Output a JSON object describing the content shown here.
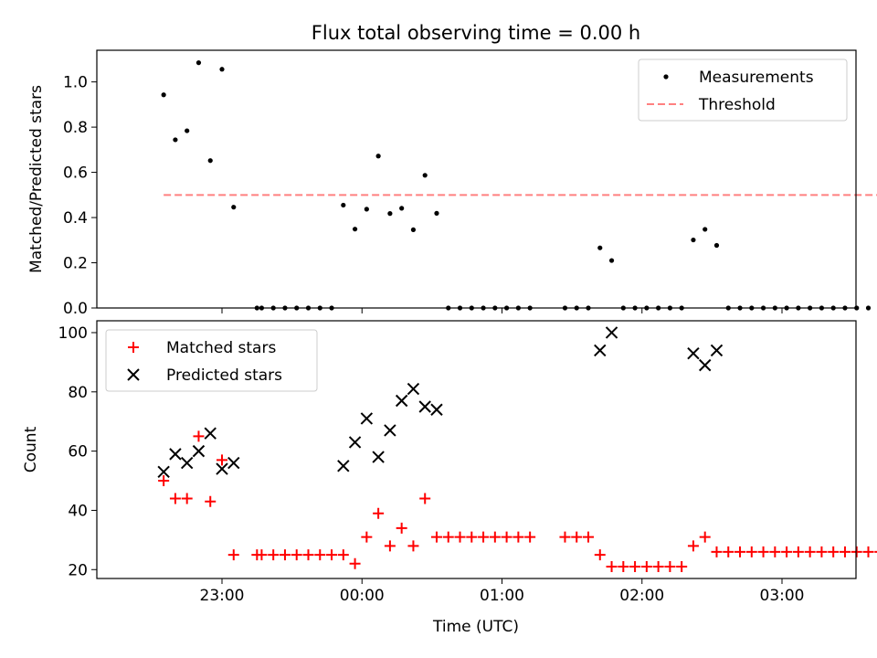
{
  "chart_data": {
    "title": "Flux total observing time = 0.00 h",
    "xlabel": "Time (UTC)",
    "x_ticks": [
      "23:00",
      "00:00",
      "01:00",
      "02:00",
      "03:00"
    ],
    "panels": [
      {
        "type": "scatter",
        "ylabel": "Matched/Predicted stars",
        "ylim": [
          0,
          1.14
        ],
        "y_ticks": [
          0.0,
          0.2,
          0.4,
          0.6,
          0.8,
          1.0
        ],
        "legend_placement": "upper-right",
        "series": [
          {
            "name": "Measurements",
            "marker": "dot",
            "color": "#000000",
            "points": [
              [
                "22:35",
                0.943
              ],
              [
                "22:40",
                0.744
              ],
              [
                "22:45",
                0.784
              ],
              [
                "22:50",
                1.085
              ],
              [
                "22:55",
                0.652
              ],
              [
                "23:00",
                1.056
              ],
              [
                "23:05",
                0.446
              ],
              [
                "23:15",
                0.0
              ],
              [
                "23:17",
                0.0
              ],
              [
                "23:22",
                0.0
              ],
              [
                "23:27",
                0.0
              ],
              [
                "23:32",
                0.0
              ],
              [
                "23:37",
                0.0
              ],
              [
                "23:42",
                0.0
              ],
              [
                "23:47",
                0.0
              ],
              [
                "23:52",
                0.455
              ],
              [
                "23:57",
                0.349
              ],
              [
                "00:02",
                0.437
              ],
              [
                "00:07",
                0.672
              ],
              [
                "00:12",
                0.418
              ],
              [
                "00:17",
                0.441
              ],
              [
                "00:22",
                0.346
              ],
              [
                "00:27",
                0.587
              ],
              [
                "00:32",
                0.419
              ],
              [
                "00:37",
                0.0
              ],
              [
                "00:42",
                0.0
              ],
              [
                "00:47",
                0.0
              ],
              [
                "00:52",
                0.0
              ],
              [
                "00:57",
                0.0
              ],
              [
                "01:02",
                0.0
              ],
              [
                "01:07",
                0.0
              ],
              [
                "01:12",
                0.0
              ],
              [
                "01:27",
                0.0
              ],
              [
                "01:32",
                0.0
              ],
              [
                "01:37",
                0.0
              ],
              [
                "01:42",
                0.266
              ],
              [
                "01:47",
                0.21
              ],
              [
                "01:52",
                0.0
              ],
              [
                "01:57",
                0.0
              ],
              [
                "02:02",
                0.0
              ],
              [
                "02:07",
                0.0
              ],
              [
                "02:12",
                0.0
              ],
              [
                "02:17",
                0.0
              ],
              [
                "02:22",
                0.301
              ],
              [
                "02:27",
                0.348
              ],
              [
                "02:32",
                0.277
              ],
              [
                "02:37",
                0.0
              ],
              [
                "02:42",
                0.0
              ],
              [
                "02:47",
                0.0
              ],
              [
                "02:52",
                0.0
              ],
              [
                "02:57",
                0.0
              ],
              [
                "03:02",
                0.0
              ],
              [
                "03:07",
                0.0
              ],
              [
                "03:12",
                0.0
              ],
              [
                "03:17",
                0.0
              ],
              [
                "03:22",
                0.0
              ],
              [
                "03:27",
                0.0
              ],
              [
                "03:32",
                0.0
              ],
              [
                "03:37",
                0.0
              ],
              [
                "03:42",
                0.0
              ]
            ]
          },
          {
            "name": "Threshold",
            "type": "line",
            "style": "dashed",
            "color": "#ff8080",
            "points": [
              [
                "22:35",
                0.5
              ],
              [
                "03:42",
                0.5
              ]
            ]
          }
        ]
      },
      {
        "type": "scatter",
        "ylabel": "Count",
        "ylim": [
          17,
          104
        ],
        "y_ticks": [
          20,
          40,
          60,
          80,
          100
        ],
        "legend_placement": "upper-left",
        "series": [
          {
            "name": "Matched stars",
            "marker": "plus",
            "color": "#ff0000",
            "points": [
              [
                "22:35",
                50
              ],
              [
                "22:40",
                44
              ],
              [
                "22:45",
                44
              ],
              [
                "22:50",
                65
              ],
              [
                "22:55",
                43
              ],
              [
                "23:00",
                57
              ],
              [
                "23:05",
                25
              ],
              [
                "23:15",
                25
              ],
              [
                "23:17",
                25
              ],
              [
                "23:22",
                25
              ],
              [
                "23:27",
                25
              ],
              [
                "23:32",
                25
              ],
              [
                "23:37",
                25
              ],
              [
                "23:42",
                25
              ],
              [
                "23:47",
                25
              ],
              [
                "23:52",
                25
              ],
              [
                "23:57",
                22
              ],
              [
                "00:02",
                31
              ],
              [
                "00:07",
                39
              ],
              [
                "00:12",
                28
              ],
              [
                "00:17",
                34
              ],
              [
                "00:22",
                28
              ],
              [
                "00:27",
                44
              ],
              [
                "00:32",
                31
              ],
              [
                "00:37",
                31
              ],
              [
                "00:42",
                31
              ],
              [
                "00:47",
                31
              ],
              [
                "00:52",
                31
              ],
              [
                "00:57",
                31
              ],
              [
                "01:02",
                31
              ],
              [
                "01:07",
                31
              ],
              [
                "01:12",
                31
              ],
              [
                "01:27",
                31
              ],
              [
                "01:32",
                31
              ],
              [
                "01:37",
                31
              ],
              [
                "01:42",
                25
              ],
              [
                "01:47",
                21
              ],
              [
                "01:52",
                21
              ],
              [
                "01:57",
                21
              ],
              [
                "02:02",
                21
              ],
              [
                "02:07",
                21
              ],
              [
                "02:12",
                21
              ],
              [
                "02:17",
                21
              ],
              [
                "02:22",
                28
              ],
              [
                "02:27",
                31
              ],
              [
                "02:32",
                26
              ],
              [
                "02:37",
                26
              ],
              [
                "02:42",
                26
              ],
              [
                "02:47",
                26
              ],
              [
                "02:52",
                26
              ],
              [
                "02:57",
                26
              ],
              [
                "03:02",
                26
              ],
              [
                "03:07",
                26
              ],
              [
                "03:12",
                26
              ],
              [
                "03:17",
                26
              ],
              [
                "03:22",
                26
              ],
              [
                "03:27",
                26
              ],
              [
                "03:32",
                26
              ],
              [
                "03:37",
                26
              ],
              [
                "03:42",
                26
              ]
            ]
          },
          {
            "name": "Predicted stars",
            "marker": "x",
            "color": "#000000",
            "points": [
              [
                "22:35",
                53
              ],
              [
                "22:40",
                59
              ],
              [
                "22:45",
                56
              ],
              [
                "22:50",
                60
              ],
              [
                "22:55",
                66
              ],
              [
                "23:00",
                54
              ],
              [
                "23:05",
                56
              ],
              [
                "23:52",
                55
              ],
              [
                "23:57",
                63
              ],
              [
                "00:02",
                71
              ],
              [
                "00:07",
                58
              ],
              [
                "00:12",
                67
              ],
              [
                "00:17",
                77
              ],
              [
                "00:22",
                81
              ],
              [
                "00:27",
                75
              ],
              [
                "00:32",
                74
              ],
              [
                "01:42",
                94
              ],
              [
                "01:47",
                100
              ],
              [
                "02:22",
                93
              ],
              [
                "02:27",
                89
              ],
              [
                "02:32",
                94
              ]
            ]
          }
        ]
      }
    ]
  }
}
